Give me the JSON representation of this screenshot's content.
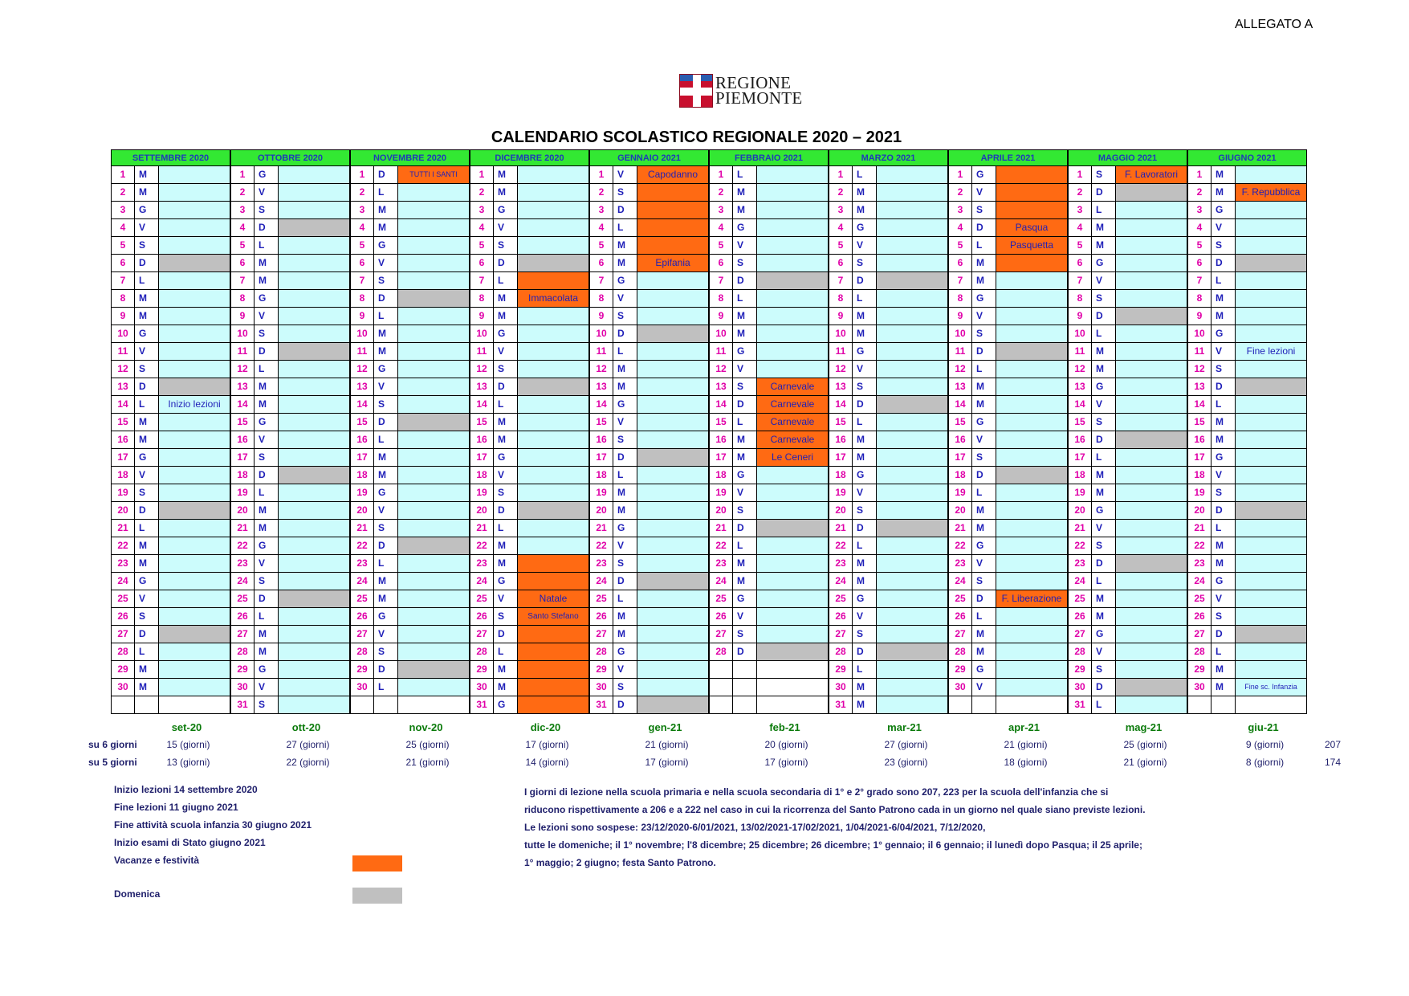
{
  "header": {
    "allegato": "ALLEGATO A",
    "logo_line1": "REGIONE",
    "logo_line2": "PIEMONTE",
    "title": "CALENDARIO SCOLASTICO REGIONALE 2020 – 2021"
  },
  "colors": {
    "header_bg": "#33e833",
    "cell_bg": "#ccfcfc",
    "holiday": "#ff6a13",
    "sunday": "#c0c0c0",
    "day_number": "#e000a8",
    "day_letter": "#1f1fb8"
  },
  "months": [
    {
      "name": "SETTEMBRE 2020",
      "short": "set-20",
      "days6": "15 (giorni)",
      "days5": "13 (giorni)",
      "letters": [
        "M",
        "M",
        "G",
        "V",
        "S",
        "D",
        "L",
        "M",
        "M",
        "G",
        "V",
        "S",
        "D",
        "L",
        "M",
        "M",
        "G",
        "V",
        "S",
        "D",
        "L",
        "M",
        "M",
        "G",
        "V",
        "S",
        "D",
        "L",
        "M",
        "M"
      ],
      "events": {
        "14": {
          "t": "Inizio lezioni",
          "k": "n"
        }
      }
    },
    {
      "name": "OTTOBRE 2020",
      "short": "ott-20",
      "days6": "27 (giorni)",
      "days5": "22 (giorni)",
      "letters": [
        "G",
        "V",
        "S",
        "D",
        "L",
        "M",
        "M",
        "G",
        "V",
        "S",
        "D",
        "L",
        "M",
        "M",
        "G",
        "V",
        "S",
        "D",
        "L",
        "M",
        "M",
        "G",
        "V",
        "S",
        "D",
        "L",
        "M",
        "M",
        "G",
        "V",
        "S"
      ],
      "events": {}
    },
    {
      "name": "NOVEMBRE 2020",
      "short": "nov-20",
      "days6": "25 (giorni)",
      "days5": "21 (giorni)",
      "letters": [
        "D",
        "L",
        "M",
        "M",
        "G",
        "V",
        "S",
        "D",
        "L",
        "M",
        "M",
        "G",
        "V",
        "S",
        "D",
        "L",
        "M",
        "M",
        "G",
        "V",
        "S",
        "D",
        "L",
        "M",
        "M",
        "G",
        "V",
        "S",
        "D",
        "L"
      ],
      "events": {
        "1": {
          "t": "TUTTI I SANTI",
          "k": "h",
          "s": "small"
        }
      }
    },
    {
      "name": "DICEMBRE 2020",
      "short": "dic-20",
      "days6": "17 (giorni)",
      "days5": "14 (giorni)",
      "letters": [
        "M",
        "M",
        "G",
        "V",
        "S",
        "D",
        "L",
        "M",
        "M",
        "G",
        "V",
        "S",
        "D",
        "L",
        "M",
        "M",
        "G",
        "V",
        "S",
        "D",
        "L",
        "M",
        "M",
        "G",
        "V",
        "S",
        "D",
        "L",
        "M",
        "M",
        "G"
      ],
      "events": {
        "7": {
          "t": "",
          "k": "h"
        },
        "8": {
          "t": "Immacolata",
          "k": "h"
        },
        "23": {
          "t": "",
          "k": "h"
        },
        "24": {
          "t": "",
          "k": "h"
        },
        "25": {
          "t": "Natale",
          "k": "h"
        },
        "26": {
          "t": "Santo Stefano",
          "k": "h",
          "s": "xs"
        },
        "27": {
          "t": "",
          "k": "h"
        },
        "28": {
          "t": "",
          "k": "h"
        },
        "29": {
          "t": "",
          "k": "h"
        },
        "30": {
          "t": "",
          "k": "h"
        },
        "31": {
          "t": "",
          "k": "h"
        }
      }
    },
    {
      "name": "GENNAIO 2021",
      "short": "gen-21",
      "days6": "21 (giorni)",
      "days5": "17 (giorni)",
      "letters": [
        "V",
        "S",
        "D",
        "L",
        "M",
        "M",
        "G",
        "V",
        "S",
        "D",
        "L",
        "M",
        "M",
        "G",
        "V",
        "S",
        "D",
        "L",
        "M",
        "M",
        "G",
        "V",
        "S",
        "D",
        "L",
        "M",
        "M",
        "G",
        "V",
        "S",
        "D"
      ],
      "events": {
        "1": {
          "t": "Capodanno",
          "k": "h"
        },
        "2": {
          "t": "",
          "k": "h"
        },
        "3": {
          "t": "",
          "k": "h"
        },
        "4": {
          "t": "",
          "k": "h"
        },
        "5": {
          "t": "",
          "k": "h"
        },
        "6": {
          "t": "Epifania",
          "k": "h"
        }
      }
    },
    {
      "name": "FEBBRAIO 2021",
      "short": "feb-21",
      "days6": "20 (giorni)",
      "days5": "17 (giorni)",
      "letters": [
        "L",
        "M",
        "M",
        "G",
        "V",
        "S",
        "D",
        "L",
        "M",
        "M",
        "G",
        "V",
        "S",
        "D",
        "L",
        "M",
        "M",
        "G",
        "V",
        "S",
        "D",
        "L",
        "M",
        "M",
        "G",
        "V",
        "S",
        "D"
      ],
      "events": {
        "13": {
          "t": "Carnevale",
          "k": "h"
        },
        "14": {
          "t": "Carnevale",
          "k": "h"
        },
        "15": {
          "t": "Carnevale",
          "k": "h"
        },
        "16": {
          "t": "Carnevale",
          "k": "h"
        },
        "17": {
          "t": "Le Ceneri",
          "k": "h"
        }
      }
    },
    {
      "name": "MARZO 2021",
      "short": "mar-21",
      "days6": "27 (giorni)",
      "days5": "23 (giorni)",
      "letters": [
        "L",
        "M",
        "M",
        "G",
        "V",
        "S",
        "D",
        "L",
        "M",
        "M",
        "G",
        "V",
        "S",
        "D",
        "L",
        "M",
        "M",
        "G",
        "V",
        "S",
        "D",
        "L",
        "M",
        "M",
        "G",
        "V",
        "S",
        "D",
        "L",
        "M",
        "M"
      ],
      "events": {}
    },
    {
      "name": "APRILE 2021",
      "short": "apr-21",
      "days6": "21 (giorni)",
      "days5": "18 (giorni)",
      "letters": [
        "G",
        "V",
        "S",
        "D",
        "L",
        "M",
        "M",
        "G",
        "V",
        "S",
        "D",
        "L",
        "M",
        "M",
        "G",
        "V",
        "S",
        "D",
        "L",
        "M",
        "M",
        "G",
        "V",
        "S",
        "D",
        "L",
        "M",
        "M",
        "G",
        "V"
      ],
      "events": {
        "1": {
          "t": "",
          "k": "h"
        },
        "2": {
          "t": "",
          "k": "h"
        },
        "3": {
          "t": "",
          "k": "h"
        },
        "4": {
          "t": "Pasqua",
          "k": "h"
        },
        "5": {
          "t": "Pasquetta",
          "k": "h"
        },
        "6": {
          "t": "",
          "k": "h"
        },
        "25": {
          "t": "F. Liberazione",
          "k": "h"
        }
      }
    },
    {
      "name": "MAGGIO 2021",
      "short": "mag-21",
      "days6": "25 (giorni)",
      "days5": "21 (giorni)",
      "letters": [
        "S",
        "D",
        "L",
        "M",
        "M",
        "G",
        "V",
        "S",
        "D",
        "L",
        "M",
        "M",
        "G",
        "V",
        "S",
        "D",
        "L",
        "M",
        "M",
        "G",
        "V",
        "S",
        "D",
        "L",
        "M",
        "M",
        "G",
        "V",
        "S",
        "D",
        "L"
      ],
      "events": {
        "1": {
          "t": "F. Lavoratori",
          "k": "h"
        }
      }
    },
    {
      "name": "GIUGNO 2021",
      "short": "giu-21",
      "days6": "9 (giorni)",
      "days5": "8 (giorni)",
      "letters": [
        "M",
        "M",
        "G",
        "V",
        "S",
        "D",
        "L",
        "M",
        "M",
        "G",
        "V",
        "S",
        "D",
        "L",
        "M",
        "M",
        "G",
        "V",
        "S",
        "D",
        "L",
        "M",
        "M",
        "G",
        "V",
        "S",
        "D",
        "L",
        "M",
        "M"
      ],
      "events": {
        "2": {
          "t": "F. Repubblica",
          "k": "h"
        },
        "11": {
          "t": "Fine lezioni",
          "k": "n"
        },
        "30": {
          "t": "Fine sc. Infanzia",
          "k": "n",
          "s": "small"
        }
      }
    }
  ],
  "counts": {
    "label6": "su 6 giorni",
    "label5": "su 5 giorni",
    "total6": "207",
    "total5": "174"
  },
  "notes_left": [
    "Inizio lezioni 14 settembre 2020",
    "Fine lezioni 11 giugno 2021",
    "Fine attività scuola infanzia 30 giugno 2021",
    "Inizio esami di Stato giugno 2021",
    "Vacanze e festività",
    "Domenica"
  ],
  "notes_right": [
    "I giorni di lezione nella scuola primaria e nella scuola secondaria di 1° e 2° grado sono 207, 223 per la scuola dell'infanzia che si",
    "riducono rispettivamente a 206 e a 222 nel caso in cui la ricorrenza del Santo Patrono cada in un giorno nel quale siano previste lezioni.",
    "Le lezioni sono sospese:  23/12/2020-6/01/2021, 13/02/2021-17/02/2021, 1/04/2021-6/04/2021, 7/12/2020,",
    "tutte le domeniche; il 1° novembre; l'8 dicembre; 25 dicembre; 26 dicembre; 1° gennaio; il 6 gennaio; il lunedì dopo Pasqua; il 25 aprile;",
    "1° maggio; 2 giugno; festa Santo Patrono."
  ]
}
